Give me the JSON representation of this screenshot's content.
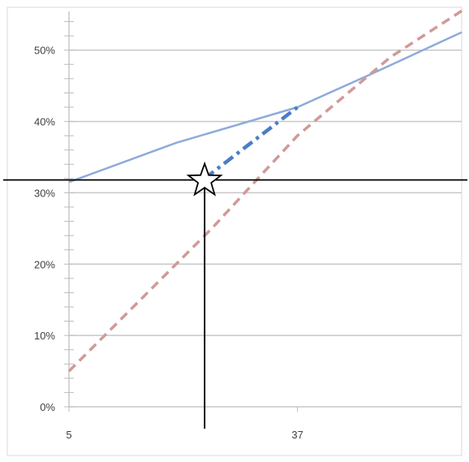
{
  "chart_data": {
    "type": "line",
    "title": "",
    "xlabel": "",
    "ylabel": "",
    "x_ticks": [
      5,
      37
    ],
    "y_ticks": [
      "0%",
      "10%",
      "20%",
      "30%",
      "40%",
      "50%"
    ],
    "xlim": [
      5,
      60
    ],
    "ylim": [
      0,
      0.56
    ],
    "grid": true,
    "series": [
      {
        "style": "solid",
        "color": "#8eaadb",
        "x": [
          5,
          20,
          37,
          47,
          60
        ],
        "y": [
          0.315,
          0.37,
          0.42,
          0.465,
          0.525
        ]
      },
      {
        "style": "dashed",
        "color": "#d09a98",
        "x": [
          5,
          25,
          37,
          50,
          60
        ],
        "y": [
          0.05,
          0.25,
          0.38,
          0.49,
          0.555
        ]
      },
      {
        "style": "dash-dot",
        "color": "#4a7dc6",
        "x": [
          24,
          37
        ],
        "y": [
          0.32,
          0.42
        ]
      }
    ],
    "reference_lines": {
      "horizontal_y": 0.318,
      "vertical_x": 24,
      "color": "#000000"
    },
    "marker": {
      "shape": "star",
      "x": 24,
      "y": 0.318
    }
  }
}
